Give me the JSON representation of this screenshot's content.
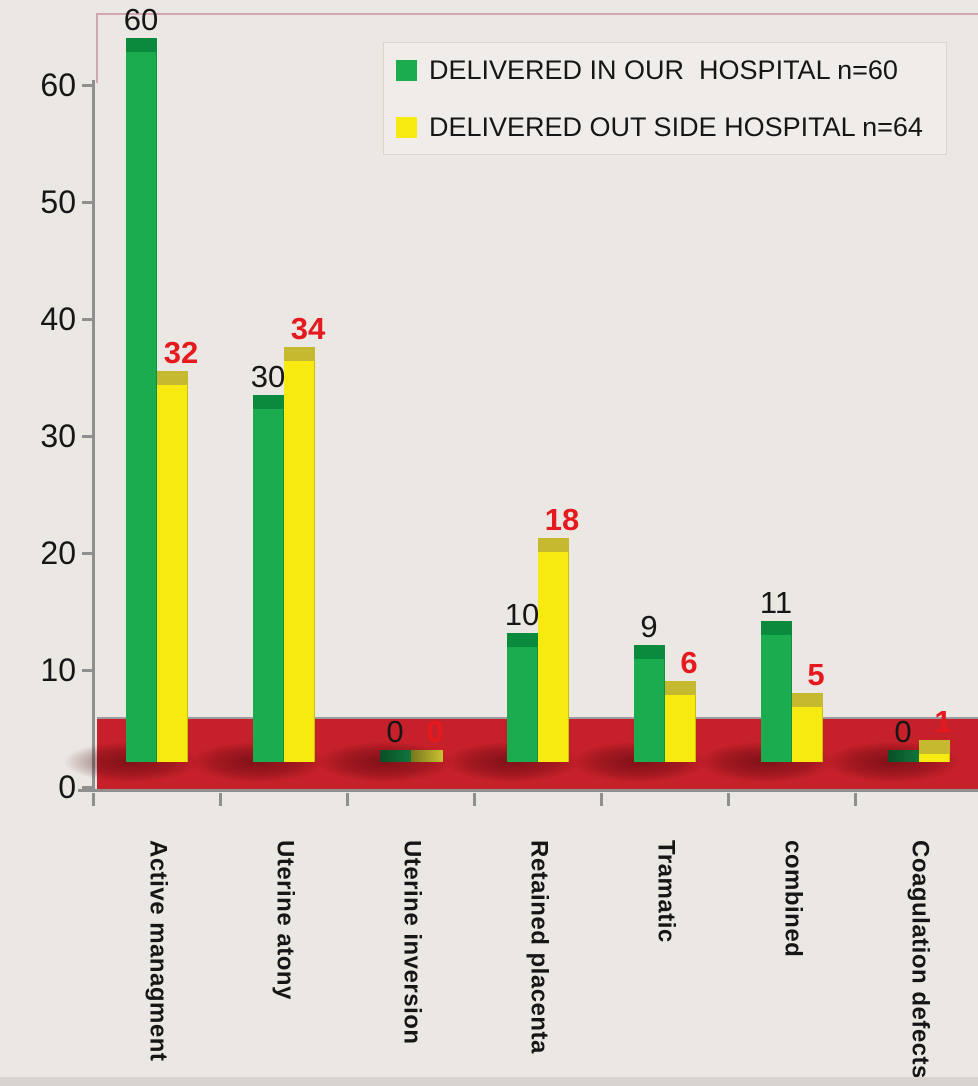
{
  "chart_data": {
    "type": "bar",
    "title": "",
    "categories": [
      "Active managment",
      "Uterine atony",
      "Uterine inversion",
      "Retained placenta",
      "Tramatic",
      "combined",
      "Coagulation defects"
    ],
    "series": [
      {
        "name": "DELIVERED IN OUR  HOSPITAL n=60",
        "values": [
          60,
          30,
          0,
          10,
          9,
          11,
          0
        ],
        "color": "#1bac50",
        "cap_color": "#0a8a3c",
        "zero_fill": "linear-gradient(90deg,#0a4f28,#11773c)",
        "label_color": "#161616",
        "label_values": [
          "60",
          "30",
          "0",
          "10",
          "9",
          "11",
          "0"
        ]
      },
      {
        "name": "DELIVERED OUT SIDE HOSPITAL n=64",
        "values": [
          32,
          34,
          0,
          18,
          6,
          5,
          1
        ],
        "color": "#f6ea10",
        "cap_color": "#c4b92f",
        "zero_fill": "linear-gradient(90deg,#76761f,#c9c22f)",
        "label_color": "#e5191e",
        "label_values": [
          "32",
          "34",
          "0",
          "18",
          "6",
          "5",
          "1"
        ]
      }
    ],
    "ylim": [
      0,
      65
    ],
    "yticks": [
      0,
      10,
      20,
      30,
      40,
      50,
      60
    ],
    "xlabel": "",
    "ylabel": "",
    "grid": false,
    "legend_position": "top-right",
    "red_band": {
      "from": 0,
      "to": 6,
      "color": "#c6202a"
    },
    "accent_colors": {
      "green_series": "#1bac50",
      "yellow_series": "#f6ea10",
      "band_red": "#c6202a",
      "red_value_labels": "#e5191e"
    }
  }
}
